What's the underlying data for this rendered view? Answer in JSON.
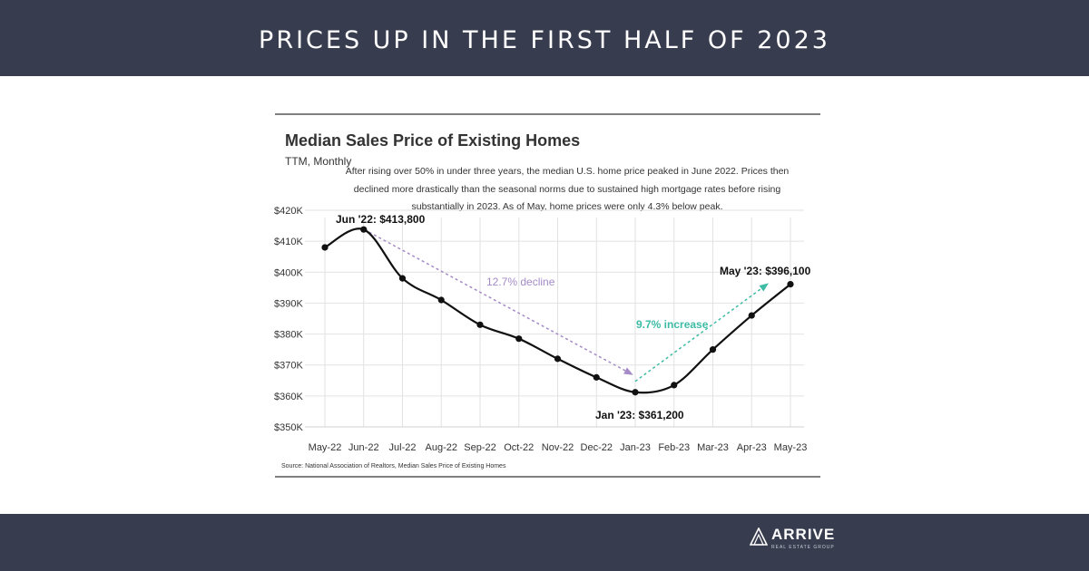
{
  "banner": {
    "headline": "PRICES UP IN THE FIRST HALF OF 2023"
  },
  "brand": {
    "name": "ARRIVE",
    "tagline": "REAL ESTATE GROUP"
  },
  "colors": {
    "bar": "#383c4f",
    "line": "#111111",
    "decline": "#a48bc7",
    "increase": "#3dbba5",
    "grid": "#dcdcdc"
  },
  "chart_data": {
    "type": "line",
    "title": "Median Sales Price of Existing Homes",
    "subtitle": "TTM, Monthly",
    "description": [
      "After rising over 50% in under three years, the median U.S. home price peaked in June 2022. Prices then",
      "declined more drastically than the seasonal norms due to sustained high mortgage rates before rising",
      "substantially in 2023. As of May, home prices were only 4.3% below peak."
    ],
    "categories": [
      "May-22",
      "Jun-22",
      "Jul-22",
      "Aug-22",
      "Sep-22",
      "Oct-22",
      "Nov-22",
      "Dec-22",
      "Jan-23",
      "Feb-23",
      "Mar-23",
      "Apr-23",
      "May-23"
    ],
    "values": [
      408000,
      413800,
      398000,
      391000,
      383000,
      378500,
      372000,
      366000,
      361200,
      363500,
      375000,
      386000,
      396100
    ],
    "ylim": [
      350000,
      420000
    ],
    "yticks": [
      350000,
      360000,
      370000,
      380000,
      390000,
      400000,
      410000,
      420000
    ],
    "ytick_labels": [
      "$350K",
      "$360K",
      "$370K",
      "$380K",
      "$390K",
      "$400K",
      "$410K",
      "$420K"
    ],
    "annotations": {
      "peak": "Jun '22: $413,800",
      "trough": "Jan '23: $361,200",
      "latest": "May '23: $396,100",
      "decline": "12.7% decline",
      "increase": "9.7% increase"
    },
    "source": "Source:  National Association of Realtors, Median Sales Price of Existing Homes",
    "xlabel": "",
    "ylabel": ""
  }
}
